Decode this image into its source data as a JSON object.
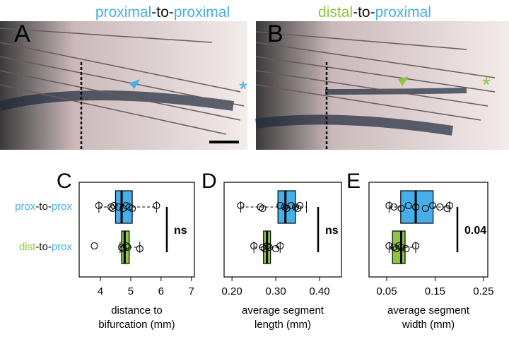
{
  "figure": {
    "photos": [
      {
        "label": "A",
        "title_parts": [
          "proximal",
          "-to-",
          "proximal"
        ],
        "title_colors": [
          "#46aee8",
          "#111111",
          "#46aee8"
        ]
      },
      {
        "label": "B",
        "title_parts": [
          "distal",
          "-to-",
          "proximal"
        ],
        "title_colors": [
          "#8dc640",
          "#111111",
          "#46aee8"
        ]
      }
    ]
  },
  "chart_data": [
    {
      "type": "boxplot",
      "label": "C",
      "categories": [
        [
          "prox",
          "-to-",
          "prox"
        ],
        [
          "dist",
          "-to-",
          "prox"
        ]
      ],
      "category_colors": [
        [
          "#46aee8",
          "#111111",
          "#46aee8"
        ],
        [
          "#8dc640",
          "#111111",
          "#46aee8"
        ]
      ],
      "x_label": [
        "distance to",
        "bifurcation (mm)"
      ],
      "xlim": [
        3.3,
        7.1
      ],
      "xticks": [
        4,
        5,
        6,
        7
      ],
      "series": [
        {
          "color": "#46aee8",
          "q1": 4.5,
          "median": 4.7,
          "q3": 5.05,
          "whisker_low": 3.95,
          "whisker_high": 5.85,
          "points": [
            3.95,
            4.35,
            4.4,
            4.45,
            4.6,
            4.75,
            4.85,
            4.95,
            5.05,
            5.85
          ]
        },
        {
          "color": "#8dc640",
          "q1": 4.7,
          "median": 4.8,
          "q3": 4.95,
          "whisker_low": 4.65,
          "whisker_high": 5.3,
          "points": [
            3.8,
            4.7,
            4.75,
            4.85,
            4.9,
            5.3
          ]
        }
      ],
      "significance": "ns"
    },
    {
      "type": "boxplot",
      "label": "D",
      "categories": null,
      "category_colors": null,
      "x_label": [
        "average segment",
        "length (mm)"
      ],
      "xlim": [
        0.182,
        0.45
      ],
      "xticks": [
        {
          "value": 0.2,
          "label": "0.20"
        },
        {
          "value": 0.3,
          "label": "0.30"
        },
        {
          "value": 0.4,
          "label": "0.40"
        }
      ],
      "series": [
        {
          "color": "#46aee8",
          "q1": 0.305,
          "median": 0.322,
          "q3": 0.345,
          "whisker_low": 0.22,
          "whisker_high": 0.37,
          "points": [
            0.22,
            0.265,
            0.27,
            0.31,
            0.32,
            0.325,
            0.335,
            0.345,
            0.35,
            0.355
          ]
        },
        {
          "color": "#8dc640",
          "q1": 0.272,
          "median": 0.28,
          "q3": 0.288,
          "whisker_low": 0.25,
          "whisker_high": 0.31,
          "points": [
            0.25,
            0.27,
            0.275,
            0.28,
            0.285,
            0.3,
            0.31
          ]
        }
      ],
      "significance": "ns"
    },
    {
      "type": "boxplot",
      "label": "E",
      "categories": null,
      "category_colors": null,
      "x_label": [
        "average segment",
        "width (mm)"
      ],
      "xlim": [
        0.0135,
        0.259
      ],
      "xticks": [
        {
          "value": 0.05,
          "label": "0.05"
        },
        {
          "value": 0.15,
          "label": "0.15"
        },
        {
          "value": 0.25,
          "label": "0.25"
        }
      ],
      "series": [
        {
          "color": "#46aee8",
          "q1": 0.079,
          "median": 0.11,
          "q3": 0.146,
          "whisker_low": 0.055,
          "whisker_high": 0.18,
          "points": [
            0.055,
            0.065,
            0.08,
            0.095,
            0.11,
            0.13,
            0.145,
            0.16,
            0.175,
            0.18
          ]
        },
        {
          "color": "#8dc640",
          "q1": 0.062,
          "median": 0.08,
          "q3": 0.088,
          "whisker_low": 0.055,
          "whisker_high": 0.11,
          "points": [
            0.055,
            0.065,
            0.07,
            0.075,
            0.08,
            0.09,
            0.11
          ]
        }
      ],
      "significance": "0.04"
    }
  ]
}
